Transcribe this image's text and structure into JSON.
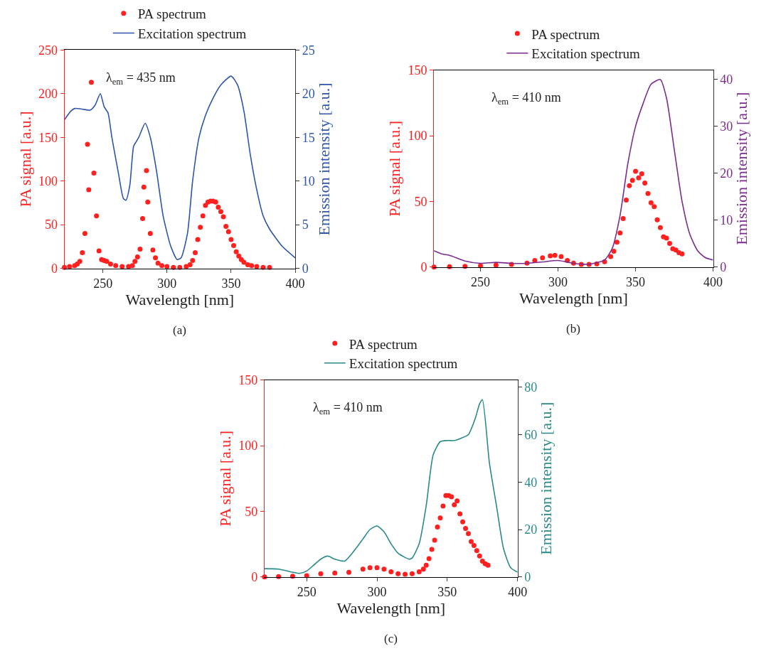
{
  "chart_data": [
    {
      "type": "line",
      "xlabel": "Wavelength [nm]",
      "ylabel": "PA signal [a.u.]",
      "y2label": "Emission intensity [a.u.]",
      "annotations": [
        "λ$_{em}$ = 435 nm",
        "(a)"
      ],
      "legend": "top",
      "xlim": [
        220,
        400
      ],
      "xticks": [
        250,
        300,
        350,
        400
      ],
      "ylim": [
        0,
        250
      ],
      "yticks": [
        0,
        50,
        100,
        150,
        200,
        250
      ],
      "y2lim": [
        0,
        25
      ],
      "y2ticks": [
        0,
        5,
        10,
        15,
        20,
        25
      ],
      "series": [
        {
          "name": "PA spectrum",
          "type": "scatter",
          "marker": "circle",
          "color": "#ff2020",
          "x": [
            220,
            224,
            228,
            230,
            232,
            234,
            236,
            238,
            239,
            241,
            243,
            245,
            247,
            249,
            251,
            253,
            256,
            260,
            265,
            270,
            273,
            275,
            277,
            279,
            281,
            282,
            284,
            285,
            287,
            289,
            291,
            293,
            296,
            300,
            305,
            310,
            315,
            318,
            320,
            322,
            324,
            326,
            328,
            330,
            332,
            334,
            336,
            338,
            340,
            342,
            344,
            346,
            348,
            350,
            352,
            354,
            356,
            358,
            360,
            363,
            366,
            370,
            375,
            380
          ],
          "values": [
            1,
            2,
            3,
            5,
            8,
            18,
            40,
            142,
            90,
            213,
            109,
            60,
            20,
            10,
            9,
            8,
            5,
            3,
            2,
            2,
            3,
            8,
            13,
            22,
            57,
            93,
            112,
            76,
            40,
            21,
            12,
            6,
            3,
            2,
            1,
            1,
            2,
            4,
            9,
            18,
            33,
            47,
            60,
            72,
            76,
            77,
            77,
            76,
            70,
            65,
            59,
            48,
            42,
            33,
            26,
            19,
            14,
            10,
            7,
            4,
            3,
            2,
            1,
            1
          ]
        },
        {
          "name": "Excitation spectrum",
          "axis": "y2",
          "color": "#2e56a8",
          "x": [
            220,
            225,
            228,
            235,
            240,
            244,
            248,
            251,
            254,
            257,
            262,
            266,
            268,
            271,
            274,
            276,
            278,
            283,
            287,
            292,
            297,
            303,
            308,
            311,
            316,
            320,
            325,
            330,
            336,
            342,
            350,
            355,
            360,
            365,
            370,
            375,
            380,
            390,
            400
          ],
          "values": [
            17,
            18,
            18.3,
            18.2,
            18.1,
            18.7,
            20,
            18.5,
            17.8,
            15,
            11,
            8,
            7.8,
            9.5,
            14,
            14.5,
            15,
            16.6,
            15,
            11,
            6,
            2.5,
            1,
            1.2,
            4,
            10,
            15,
            17.5,
            19.5,
            21,
            22,
            21,
            18,
            13,
            9,
            6,
            4.5,
            2.5,
            1.2
          ]
        }
      ]
    },
    {
      "type": "line",
      "xlabel": "Wavelength [nm]",
      "ylabel": "PA signal [a.u.]",
      "y2label": "Emission intensity [a.u.]",
      "annotations": [
        "λ$_{em}$ = 410 nm",
        "(b)"
      ],
      "legend": "top",
      "xlim": [
        220,
        400
      ],
      "xticks": [
        250,
        300,
        350,
        400
      ],
      "ylim": [
        0,
        150
      ],
      "yticks": [
        0,
        50,
        100,
        150
      ],
      "y2lim": [
        0,
        42
      ],
      "y2ticks": [
        0,
        10,
        20,
        30,
        40
      ],
      "series": [
        {
          "name": "PA spectrum",
          "type": "scatter",
          "marker": "circle",
          "color": "#ff2020",
          "x": [
            220,
            230,
            240,
            250,
            260,
            270,
            280,
            285,
            290,
            295,
            298,
            302,
            306,
            310,
            315,
            320,
            325,
            330,
            334,
            336,
            338,
            340,
            342,
            344,
            346,
            348,
            350,
            352,
            354,
            356,
            358,
            360,
            362,
            364,
            366,
            368,
            370,
            372,
            374,
            376,
            378,
            380
          ],
          "values": [
            0,
            0.3,
            0.5,
            1,
            1.5,
            2,
            3,
            5,
            7,
            8.5,
            9,
            8,
            5,
            3,
            2,
            2,
            2.5,
            4,
            8,
            12,
            19,
            26,
            37,
            51,
            62,
            66,
            73,
            68,
            71,
            64,
            56,
            49,
            46,
            36,
            30,
            23,
            22,
            18,
            14,
            13,
            11,
            10
          ]
        },
        {
          "name": "Excitation spectrum",
          "axis": "y2",
          "color": "#7b2c8f",
          "x": [
            220,
            225,
            230,
            240,
            250,
            260,
            270,
            280,
            290,
            300,
            310,
            320,
            330,
            335,
            340,
            345,
            350,
            355,
            360,
            366,
            370,
            375,
            380,
            385,
            390,
            395,
            400
          ],
          "values": [
            3.5,
            2.8,
            2.5,
            1.3,
            0.8,
            1,
            0.8,
            0.8,
            1.1,
            1.4,
            0.8,
            0.6,
            1.5,
            4,
            11,
            22,
            30,
            35,
            39,
            40,
            36,
            25,
            14,
            7,
            3.5,
            2,
            1.5
          ]
        }
      ]
    },
    {
      "type": "line",
      "xlabel": "Wavelength [nm]",
      "ylabel": "PA signal [a.u.]",
      "y2label": "Emission intensity [a.u.]",
      "annotations": [
        "λ$_{em}$ = 410 nm",
        "(c)"
      ],
      "legend": "top",
      "xlim": [
        220,
        400
      ],
      "xticks": [
        250,
        300,
        350,
        400
      ],
      "ylim": [
        0,
        150
      ],
      "yticks": [
        0,
        50,
        100,
        150
      ],
      "y2lim": [
        0,
        83
      ],
      "y2ticks": [
        0,
        20,
        40,
        60,
        80
      ],
      "series": [
        {
          "name": "PA spectrum",
          "type": "scatter",
          "marker": "circle",
          "color": "#ff2020",
          "x": [
            220,
            230,
            240,
            250,
            260,
            270,
            280,
            290,
            295,
            300,
            305,
            310,
            315,
            320,
            325,
            330,
            333,
            335,
            337,
            339,
            341,
            343,
            345,
            347,
            349,
            351,
            353,
            355,
            357,
            359,
            361,
            363,
            365,
            367,
            369,
            371,
            373,
            375,
            377,
            379
          ],
          "values": [
            0,
            0.3,
            0.5,
            1,
            2.5,
            3,
            3.5,
            6,
            7,
            7,
            6,
            4,
            2.5,
            2,
            2.5,
            4,
            6,
            9,
            14,
            21,
            28,
            38,
            45,
            54,
            62,
            62,
            61,
            55,
            58,
            48,
            42,
            37,
            33,
            27,
            24,
            20,
            16,
            12,
            10,
            9
          ]
        },
        {
          "name": "Excitation spectrum",
          "axis": "y2",
          "color": "#2a8a8a",
          "x": [
            220,
            230,
            240,
            245,
            250,
            255,
            260,
            265,
            270,
            277,
            285,
            290,
            295,
            300,
            305,
            310,
            315,
            323,
            325,
            330,
            335,
            340,
            345,
            350,
            355,
            360,
            365,
            370,
            373,
            375,
            380,
            385,
            390,
            395,
            400
          ],
          "values": [
            3.5,
            3.3,
            2,
            1.5,
            2.5,
            5,
            7.5,
            8.8,
            7.5,
            6.7,
            12,
            16,
            20,
            21.5,
            19,
            14,
            10,
            7.5,
            8,
            14,
            30,
            51.5,
            57,
            57.5,
            57.5,
            58.5,
            60,
            67,
            73,
            74.7,
            48,
            30,
            12,
            4,
            2
          ]
        }
      ]
    }
  ]
}
